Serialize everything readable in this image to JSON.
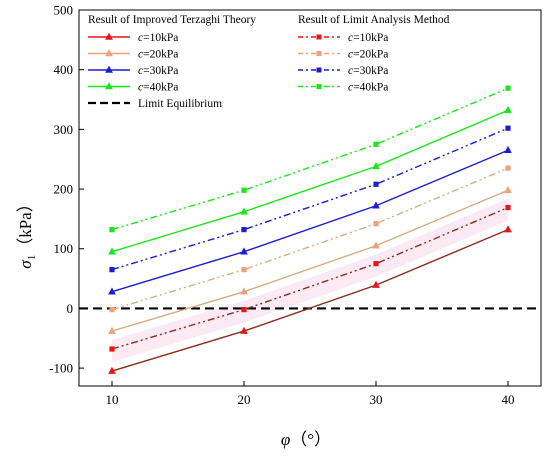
{
  "chart_data": {
    "type": "line",
    "xlabel_symbol": "φ",
    "xlabel_unit": "（°）",
    "ylabel_symbol": "σ",
    "ylabel_sub": "1",
    "ylabel_unit": "（kPa）",
    "x": [
      10,
      20,
      30,
      40
    ],
    "x_ticks": [
      10,
      20,
      30,
      40
    ],
    "y_ticks": [
      -100,
      0,
      100,
      200,
      300,
      400,
      500
    ],
    "xlim": [
      7.5,
      42.5
    ],
    "ylim": [
      -130,
      500
    ],
    "grid": false,
    "legend_position": "top-left",
    "legend_headers": [
      "Result of Improved Terzaghi Theory",
      "Result of Limit Analysis Method"
    ],
    "series": [
      {
        "group": "terzaghi",
        "c_value": "=10kPa",
        "color": "#e8141a",
        "line_color": "#8a2d1a",
        "marker": "triangle",
        "dash": "",
        "values": [
          -105,
          -38,
          39,
          132
        ]
      },
      {
        "group": "terzaghi",
        "c_value": "=20kPa",
        "color": "#f2a07a",
        "line_color": "#d6ad7f",
        "marker": "triangle",
        "dash": "",
        "values": [
          -38,
          28,
          105,
          198
        ]
      },
      {
        "group": "terzaghi",
        "c_value": "=30kPa",
        "color": "#1a1fd1",
        "line_color": "#1a1fd1",
        "marker": "triangle",
        "dash": "",
        "values": [
          28,
          95,
          172,
          265
        ]
      },
      {
        "group": "terzaghi",
        "c_value": "=40kPa",
        "color": "#19e619",
        "line_color": "#19e619",
        "marker": "triangle",
        "dash": "",
        "values": [
          95,
          162,
          238,
          332
        ]
      },
      {
        "group": "limit",
        "c_value": "=10kPa",
        "color": "#e8141a",
        "line_color": "#8a2d1a",
        "marker": "square",
        "dash": "7 3 2 3 2 3",
        "values": [
          -68,
          -2,
          75,
          169
        ]
      },
      {
        "group": "limit",
        "c_value": "=20kPa",
        "color": "#f2a07a",
        "line_color": "#d6ad7f",
        "marker": "square",
        "dash": "7 3 2 3 2 3",
        "values": [
          -2,
          65,
          142,
          235
        ]
      },
      {
        "group": "limit",
        "c_value": "=30kPa",
        "color": "#1a1fd1",
        "line_color": "#1a1fd1",
        "marker": "square",
        "dash": "7 3 2 3 2 3",
        "values": [
          65,
          132,
          208,
          302
        ]
      },
      {
        "group": "limit",
        "c_value": "=40kPa",
        "color": "#19e619",
        "line_color": "#19e619",
        "marker": "square",
        "dash": "7 3 2 3 2 3",
        "values": [
          132,
          198,
          275,
          369
        ]
      }
    ],
    "series_label_prefix": "c",
    "reference_line": {
      "name": "Limit Equilibrium",
      "y": 0,
      "color": "#000000"
    }
  }
}
